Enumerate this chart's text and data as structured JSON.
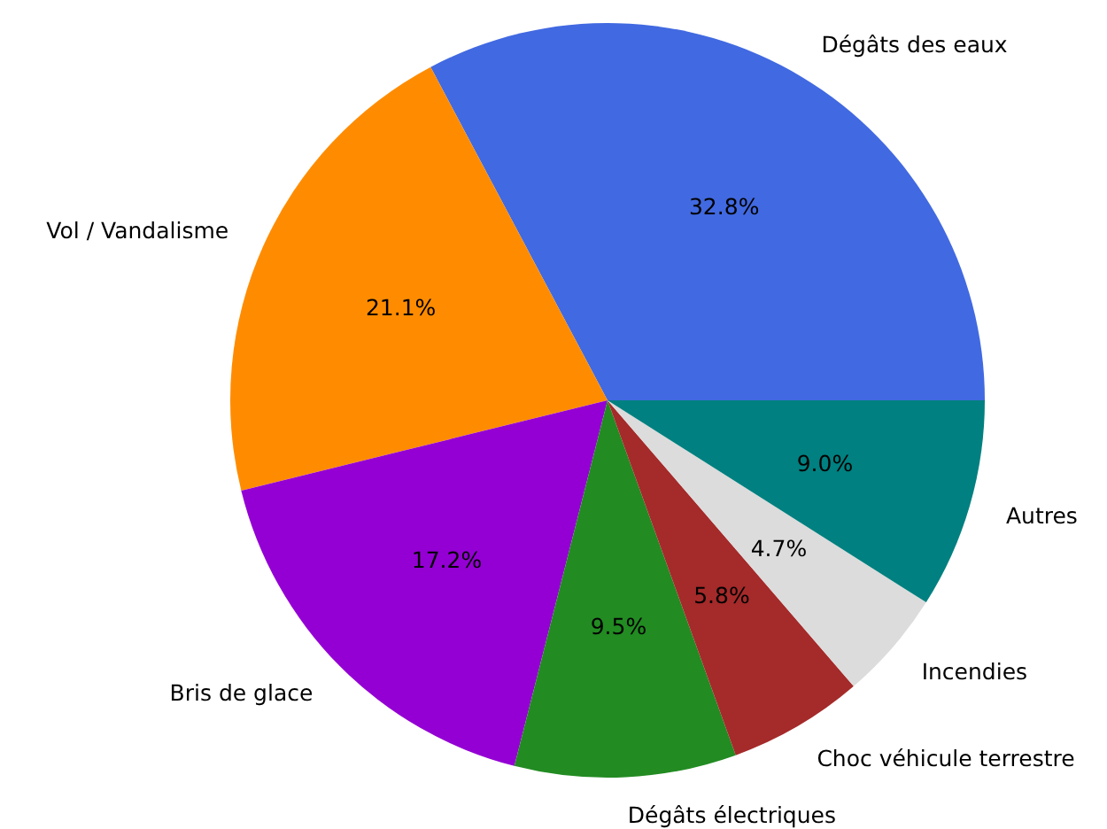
{
  "chart_data": {
    "type": "pie",
    "categories": [
      "Dégâts des eaux",
      "Vol / Vandalisme",
      "Bris de glace",
      "Dégâts électriques",
      "Choc véhicule terrestre",
      "Incendies",
      "Autres"
    ],
    "values": [
      32.8,
      21.1,
      17.2,
      9.5,
      5.8,
      4.7,
      9.0
    ],
    "value_labels": [
      "32.8%",
      "21.1%",
      "17.2%",
      "9.5%",
      "5.8%",
      "4.7%",
      "9.0%"
    ],
    "colors": [
      "#4169e1",
      "#ff8c00",
      "#9400d3",
      "#228b22",
      "#a52a2a",
      "#dcdcdc",
      "#008080"
    ]
  }
}
